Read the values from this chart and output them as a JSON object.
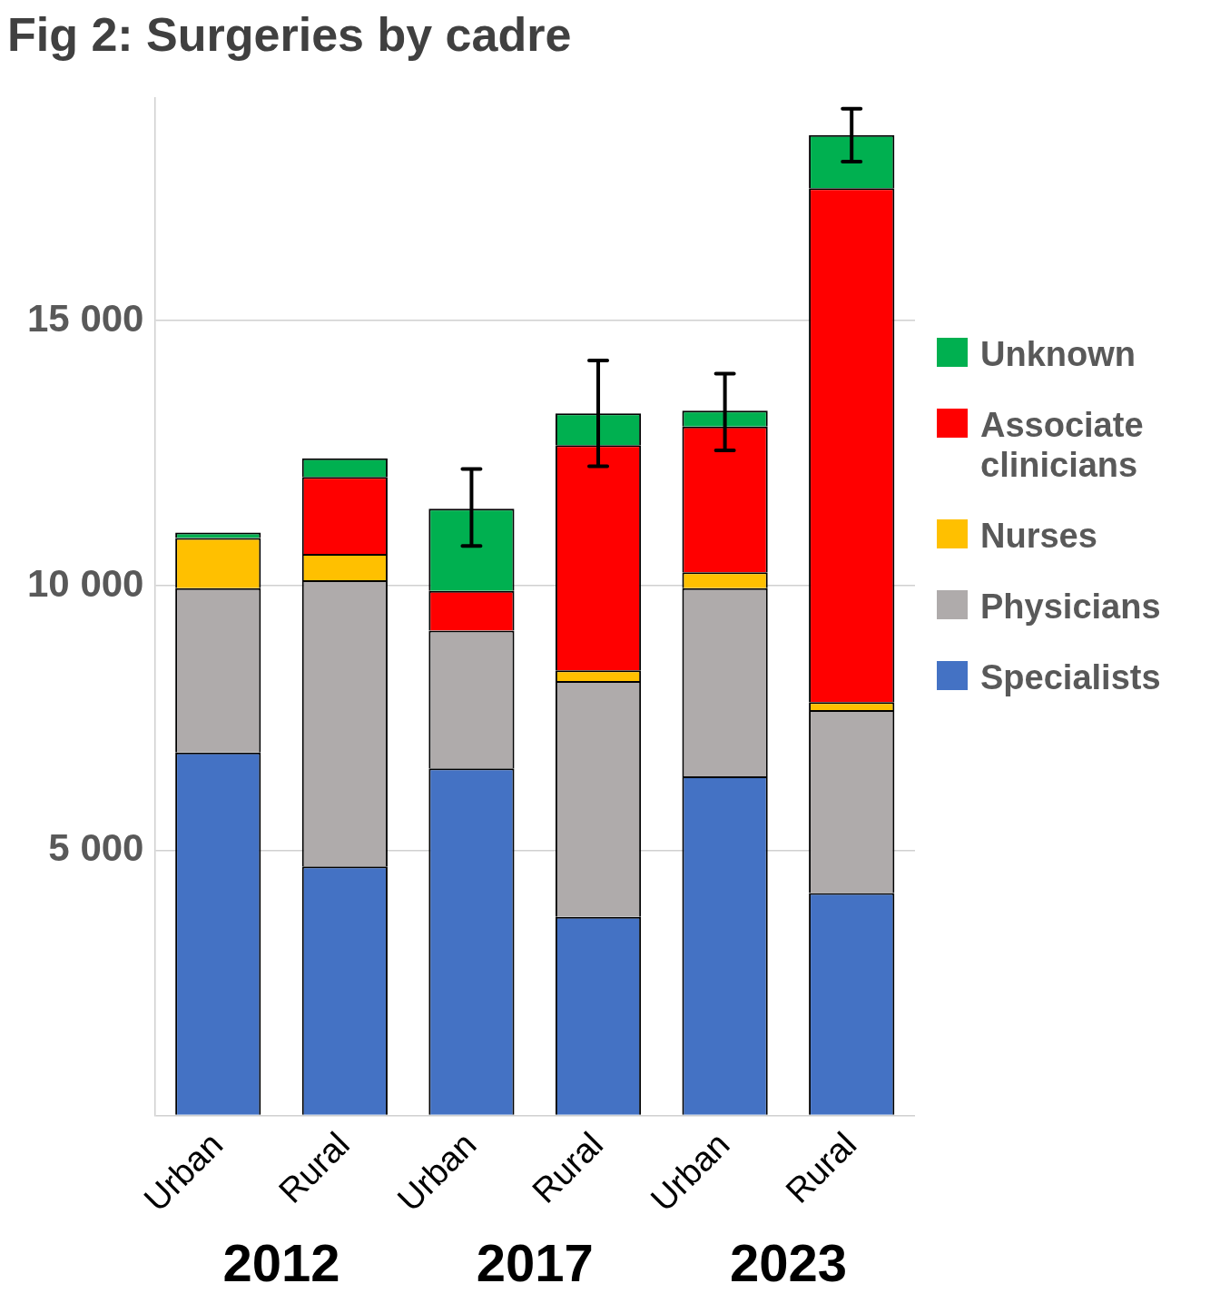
{
  "chart_data": {
    "type": "bar",
    "title": "Fig 2: Surgeries by cadre",
    "stacked": true,
    "categories": [
      "Urban",
      "Rural",
      "Urban",
      "Rural",
      "Urban",
      "Rural"
    ],
    "series": [
      {
        "name": "Specialists",
        "color": "#4472c4",
        "values": [
          6850,
          4700,
          6550,
          3750,
          6400,
          4200
        ]
      },
      {
        "name": "Physicians",
        "color": "#afabab",
        "values": [
          3100,
          5400,
          2600,
          4450,
          3550,
          3450
        ]
      },
      {
        "name": "Nurses",
        "color": "#ffc000",
        "values": [
          950,
          500,
          0,
          200,
          300,
          150
        ]
      },
      {
        "name": "Associate clinicians",
        "color": "#ff0000",
        "values": [
          0,
          1450,
          750,
          4250,
          2750,
          9700
        ]
      },
      {
        "name": "Unknown",
        "color": "#00b050",
        "values": [
          100,
          350,
          1550,
          600,
          300,
          1000
        ],
        "errors": [
          null,
          null,
          [
            10750,
            12200
          ],
          [
            12250,
            14250
          ],
          [
            12550,
            14000
          ],
          [
            18000,
            19000
          ]
        ]
      }
    ],
    "ylim": [
      0,
      19200
    ],
    "yticks": [
      {
        "value": 0,
        "label": null
      },
      {
        "value": 5000,
        "label": "5 000"
      },
      {
        "value": 10000,
        "label": "10 000"
      },
      {
        "value": 15000,
        "label": "15 000"
      }
    ],
    "grid": "y",
    "legend": "right",
    "annotations": [
      "2012",
      "2017",
      "2023"
    ]
  }
}
